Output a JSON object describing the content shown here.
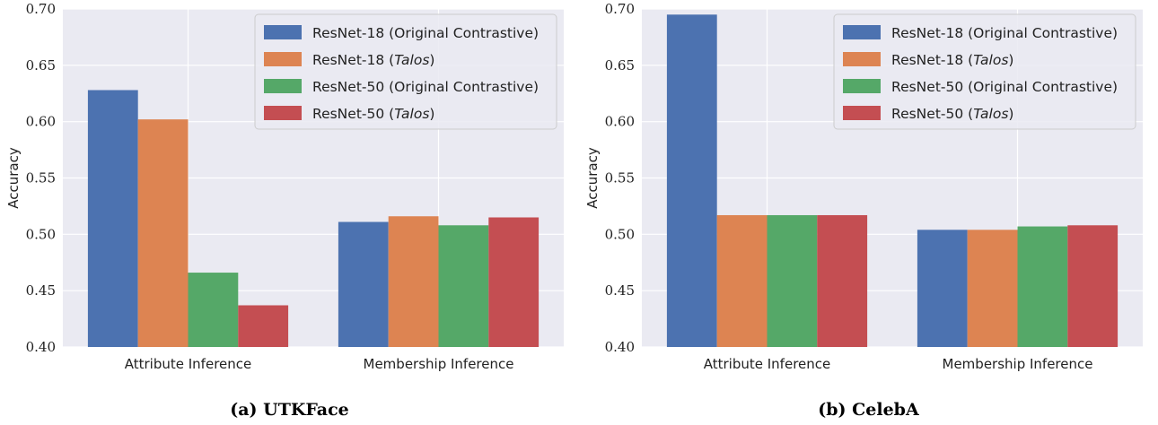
{
  "chart_data": [
    {
      "type": "bar",
      "caption": "(a) UTKFace",
      "ylabel": "Accuracy",
      "ylim": [
        0.4,
        0.7
      ],
      "yticks": [
        "0.40",
        "0.45",
        "0.50",
        "0.55",
        "0.60",
        "0.65",
        "0.70"
      ],
      "categories": [
        "Attribute Inference",
        "Membership Inference"
      ],
      "grid": true,
      "legend_position": "top-right",
      "series": [
        {
          "name": "ResNet-18 (Original Contrastive)",
          "color": "#4c72b0",
          "values": [
            0.628,
            0.511
          ]
        },
        {
          "name": "ResNet-18 (Talos)",
          "color": "#dd8452",
          "values": [
            0.602,
            0.516
          ]
        },
        {
          "name": "ResNet-50 (Original Contrastive)",
          "color": "#55a868",
          "values": [
            0.466,
            0.508
          ]
        },
        {
          "name": "ResNet-50 (Talos)",
          "color": "#c44e52",
          "values": [
            0.437,
            0.515
          ]
        }
      ]
    },
    {
      "type": "bar",
      "caption": "(b) CelebA",
      "ylabel": "Accuracy",
      "ylim": [
        0.4,
        0.7
      ],
      "yticks": [
        "0.40",
        "0.45",
        "0.50",
        "0.55",
        "0.60",
        "0.65",
        "0.70"
      ],
      "categories": [
        "Attribute Inference",
        "Membership Inference"
      ],
      "grid": true,
      "legend_position": "top-right",
      "series": [
        {
          "name": "ResNet-18 (Original Contrastive)",
          "color": "#4c72b0",
          "values": [
            0.695,
            0.504
          ]
        },
        {
          "name": "ResNet-18 (Talos)",
          "color": "#dd8452",
          "values": [
            0.517,
            0.504
          ]
        },
        {
          "name": "ResNet-50 (Original Contrastive)",
          "color": "#55a868",
          "values": [
            0.517,
            0.507
          ]
        },
        {
          "name": "ResNet-50 (Talos)",
          "color": "#c44e52",
          "values": [
            0.517,
            0.508
          ]
        }
      ]
    }
  ]
}
